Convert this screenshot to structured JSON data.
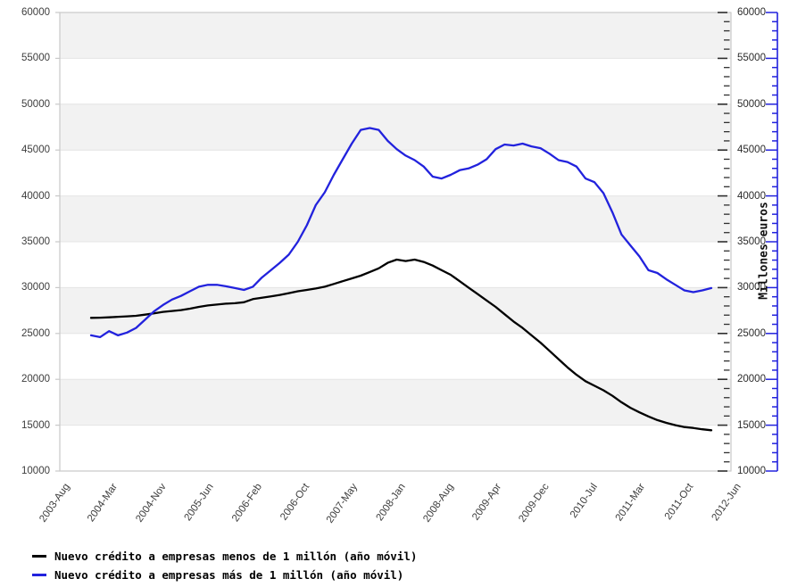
{
  "chart_data": {
    "type": "line",
    "title": "",
    "ylabel_right": "Millones euros",
    "grid": true,
    "band_color": "#f2f2f2",
    "gridline_color": "#e4e4e4",
    "border_color": "#c9c9c9",
    "tick_dash_color": "#2f2f2f",
    "secondary_axis_color": "#2222dd",
    "legend_position": "bottom-left",
    "y_axis": {
      "min": 10000,
      "max": 60000,
      "major_step": 5000,
      "minor_step": 1000,
      "tick_labels": [
        "10000",
        "15000",
        "20000",
        "25000",
        "30000",
        "35000",
        "40000",
        "45000",
        "50000",
        "55000",
        "60000"
      ]
    },
    "x_axis": {
      "tick_labels": [
        "2003-Aug",
        "2004-Mar",
        "2004-Nov",
        "2005-Jun",
        "2006-Feb",
        "2006-Oct",
        "2007-May",
        "2008-Jan",
        "2008-Aug",
        "2009-Apr",
        "2009-Dec",
        "2010-Jul",
        "2011-Mar",
        "2011-Oct",
        "2012-Jun"
      ]
    },
    "x_start_frac": 0.0466,
    "x_end_frac": 0.9707,
    "series": [
      {
        "name": "Nuevo crédito a empresas menos de 1 millón (año móvil)",
        "color": "#000000",
        "values": [
          26700,
          26720,
          26760,
          26820,
          26870,
          26930,
          27050,
          27200,
          27350,
          27450,
          27550,
          27700,
          27900,
          28050,
          28150,
          28250,
          28300,
          28400,
          28750,
          28900,
          29050,
          29200,
          29400,
          29600,
          29750,
          29900,
          30100,
          30400,
          30700,
          31000,
          31300,
          31700,
          32100,
          32700,
          33050,
          32900,
          33050,
          32800,
          32400,
          31900,
          31400,
          30700,
          30000,
          29300,
          28600,
          27900,
          27100,
          26300,
          25600,
          24800,
          24000,
          23100,
          22200,
          21300,
          20500,
          19800,
          19300,
          18800,
          18200,
          17500,
          16900,
          16400,
          15950,
          15550,
          15250,
          15000,
          14800,
          14700,
          14550,
          14450
        ]
      },
      {
        "name": "Nuevo crédito a empresas más de 1 millón (año móvil)",
        "color": "#2222dd",
        "values": [
          24800,
          24600,
          25250,
          24800,
          25100,
          25600,
          26500,
          27400,
          28100,
          28700,
          29100,
          29600,
          30100,
          30300,
          30300,
          30150,
          29950,
          29750,
          30100,
          31100,
          31900,
          32700,
          33600,
          35000,
          36800,
          39000,
          40400,
          42300,
          44000,
          45700,
          47200,
          47400,
          47200,
          46000,
          45100,
          44400,
          43900,
          43200,
          42100,
          41900,
          42300,
          42800,
          43000,
          43400,
          44000,
          45100,
          45600,
          45500,
          45700,
          45400,
          45200,
          44600,
          43900,
          43700,
          43200,
          41900,
          41500,
          40300,
          38200,
          35800,
          34600,
          33400,
          31900,
          31600,
          30900,
          30300,
          29700,
          29500,
          29700,
          29950
        ]
      }
    ]
  }
}
